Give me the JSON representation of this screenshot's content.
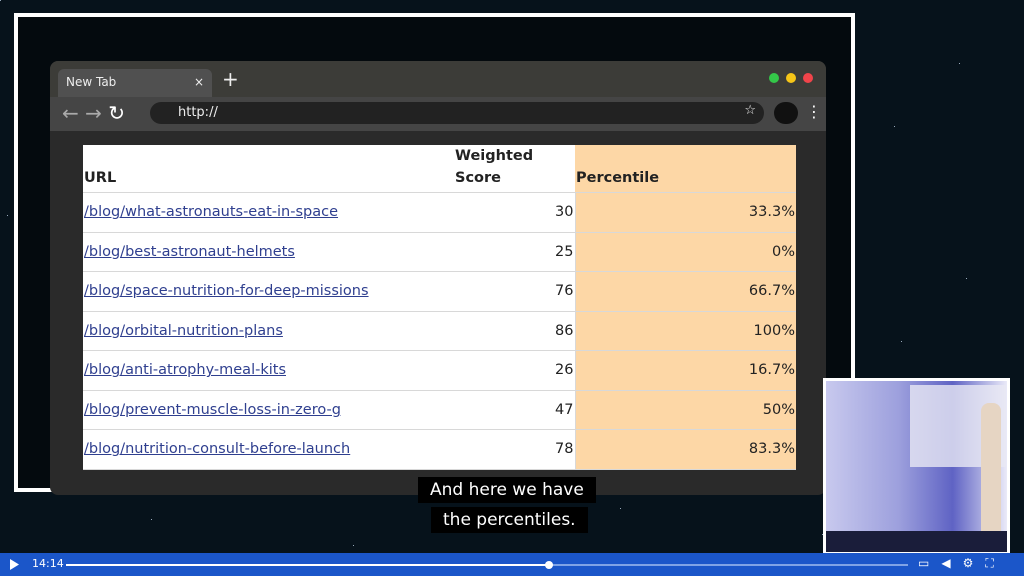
{
  "browser": {
    "tab_title": "New Tab",
    "address": "http://"
  },
  "table": {
    "headers": [
      "URL",
      "Weighted Score",
      "Percentile"
    ],
    "rows": [
      [
        "/blog/what-astronauts-eat-in-space",
        "30",
        "33.3%"
      ],
      [
        "/blog/best-astronaut-helmets",
        "25",
        "0%"
      ],
      [
        "/blog/space-nutrition-for-deep-missions",
        "76",
        "66.7%"
      ],
      [
        "/blog/orbital-nutrition-plans",
        "86",
        "100%"
      ],
      [
        "/blog/anti-atrophy-meal-kits",
        "26",
        "16.7%"
      ],
      [
        "/blog/prevent-muscle-loss-in-zero-g",
        "47",
        "50%"
      ],
      [
        "/blog/nutrition-consult-before-launch",
        "78",
        "83.3%"
      ]
    ]
  },
  "captions": [
    "And here we have",
    "the percentiles."
  ],
  "player": {
    "time": "14:14"
  }
}
